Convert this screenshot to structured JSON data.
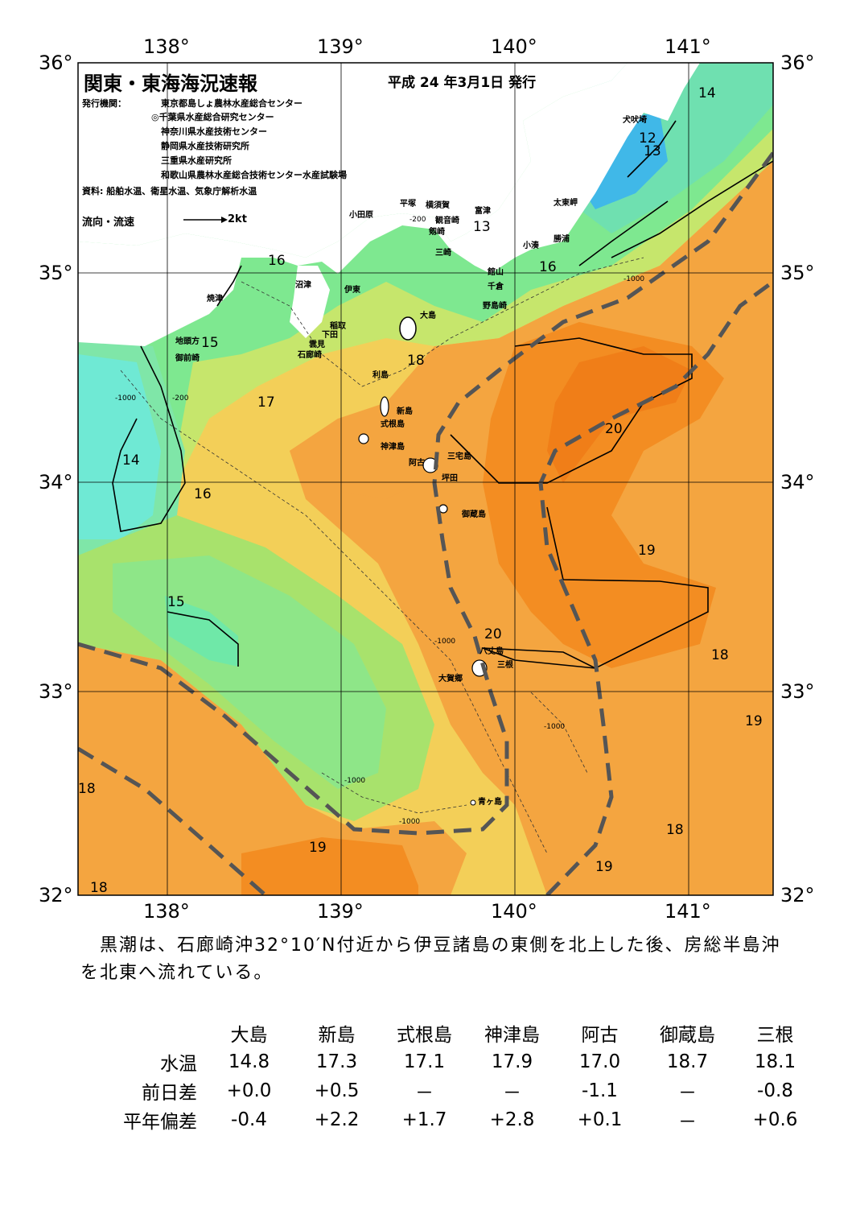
{
  "header": {
    "title": "関東・東海海況速報",
    "issued": "平成 24 年3月1日 発行",
    "agency_label": "発行機関：",
    "agencies": [
      "東京都島しょ農林水産総合センター",
      "◎千葉県水産総合研究センター",
      "神奈川県水産技術センター",
      "静岡県水産技術研究所",
      "三重県水産研究所",
      "和歌山県農林水産総合技術センター水産試験場"
    ],
    "source": "資料: 船舶水温、衛星水温、気象庁解析水温",
    "flow_legend": "流向・流速",
    "flow_unit": "2kt"
  },
  "axes": {
    "lon_labels": [
      "138°",
      "139°",
      "140°",
      "141°"
    ],
    "lat_labels": [
      "36°",
      "35°",
      "34°",
      "33°",
      "32°"
    ]
  },
  "places": [
    "犬吠埼",
    "太東岬",
    "勝浦",
    "小湊",
    "館山",
    "千倉",
    "野島崎",
    "富津",
    "横須賀",
    "観音崎",
    "剱崎",
    "三崎",
    "平塚",
    "小田原",
    "沼津",
    "伊東",
    "稲取",
    "下田",
    "雲見",
    "石廊崎",
    "焼津",
    "地頭方",
    "御前崎",
    "大島",
    "利島",
    "新島",
    "式根島",
    "神津島",
    "三宅島",
    "阿古",
    "坪田",
    "御蔵島",
    "八丈島",
    "三根",
    "大賀郷",
    "青ヶ島"
  ],
  "isotherm_labels": [
    "14",
    "12",
    "13",
    "13",
    "16",
    "16",
    "15",
    "18",
    "17",
    "14",
    "16",
    "20",
    "19",
    "15",
    "20",
    "18",
    "19",
    "18",
    "19",
    "19",
    "18",
    "18"
  ],
  "depth_labels": [
    "-200",
    "-1000"
  ],
  "colors": {
    "land": "#ffffff",
    "cold": "#3fb8e6",
    "cool": "#6fe89a",
    "mid": "#c8e96c",
    "warm_yellow": "#f3d35a",
    "warm_orange": "#f4a23d",
    "hot_orange": "#f38a20",
    "kuroshio_axis": "#555555"
  },
  "summary": "　黒潮は、石廊崎沖32°10′N付近から伊豆諸島の東側を北上した後、房総半島沖を北東へ流れている。",
  "table": {
    "columns": [
      "大島",
      "新島",
      "式根島",
      "神津島",
      "阿古",
      "御蔵島",
      "三根"
    ],
    "rows": [
      {
        "label": "水温",
        "values": [
          "14.8",
          "17.3",
          "17.1",
          "17.9",
          "17.0",
          "18.7",
          "18.1"
        ]
      },
      {
        "label": "前日差",
        "values": [
          "+0.0",
          "+0.5",
          "－",
          "－",
          "-1.1",
          "－",
          "-0.8"
        ]
      },
      {
        "label": "平年偏差",
        "values": [
          "-0.4",
          "+2.2",
          "+1.7",
          "+2.8",
          "+0.1",
          "－",
          "+0.6"
        ]
      }
    ]
  }
}
